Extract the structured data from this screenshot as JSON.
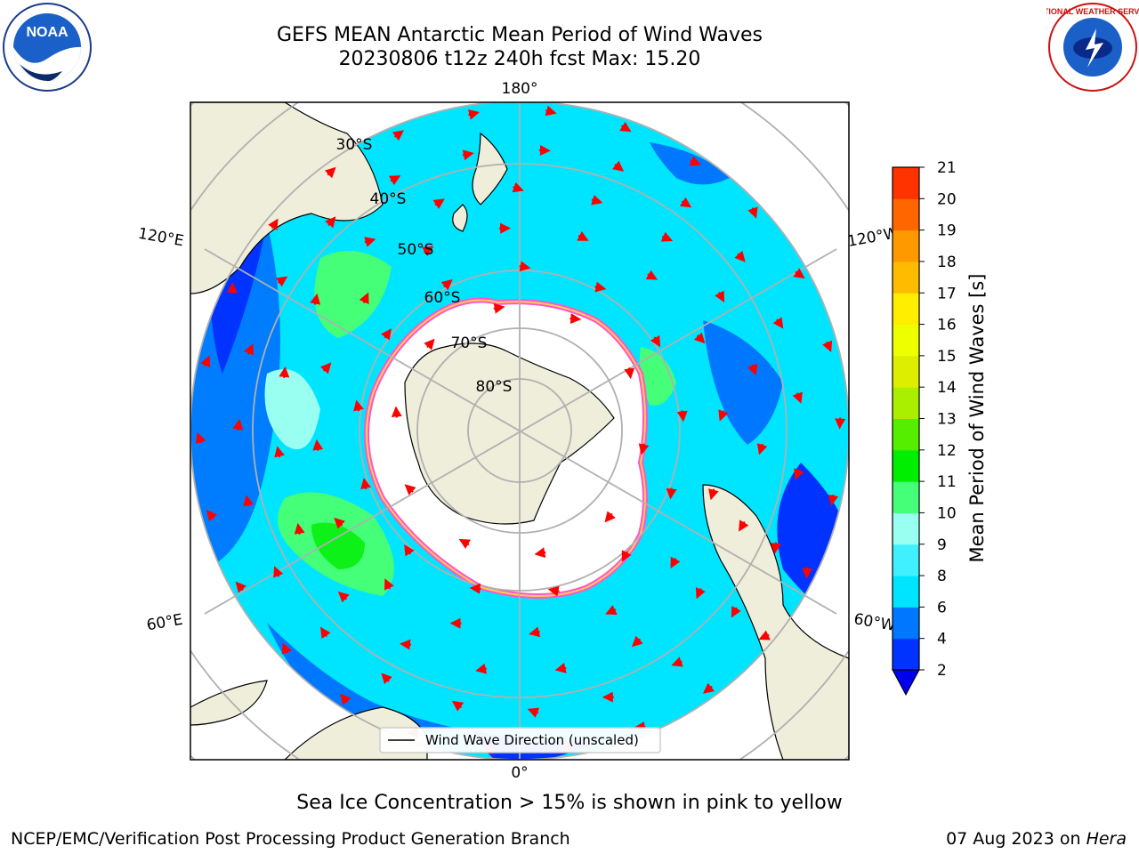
{
  "header": {
    "title_line1": "GEFS MEAN Antarctic Mean Period of Wind Waves",
    "title_line2": "20230806 t12z 240h fcst   Max: 15.20"
  },
  "logos": {
    "left": "NOAA",
    "right": "NATIONAL WEATHER SERVICE"
  },
  "map": {
    "projection": "south-polar-stereographic",
    "longitude_labels": {
      "top": "180°",
      "bottom": "0°",
      "left_upper": "120°E",
      "left_lower": "60°E",
      "right_upper": "120°W",
      "right_lower": "60°W"
    },
    "latitude_labels": [
      "30°S",
      "40°S",
      "50°S",
      "60°S",
      "70°S",
      "80°S"
    ],
    "legend_label": "Wind Wave Direction (unscaled)",
    "arrow_color": "#ff0000"
  },
  "colorbar": {
    "label": "Mean Period of Wind Waves [s]",
    "ticks": [
      "2",
      "4",
      "6",
      "8",
      "9",
      "10",
      "11",
      "12",
      "13",
      "14",
      "15",
      "16",
      "17",
      "18",
      "19",
      "20",
      "21"
    ],
    "colors": [
      "#0033ff",
      "#0077ff",
      "#00e5ff",
      "#40f0ff",
      "#99fff0",
      "#44ff77",
      "#00ee00",
      "#55ee00",
      "#aaee00",
      "#ddee00",
      "#eeff00",
      "#ffee00",
      "#ffbb00",
      "#ff9900",
      "#ff6600",
      "#ff3300",
      "#ff0000"
    ],
    "extend_color": "#0000ee"
  },
  "caption": "Sea Ice Concentration > 15% is shown in pink to yellow",
  "footer": {
    "left": "NCEP/EMC/Verification Post Processing Product Generation Branch",
    "right_text": "07 Aug 2023 on ",
    "right_italic": "Hera"
  }
}
